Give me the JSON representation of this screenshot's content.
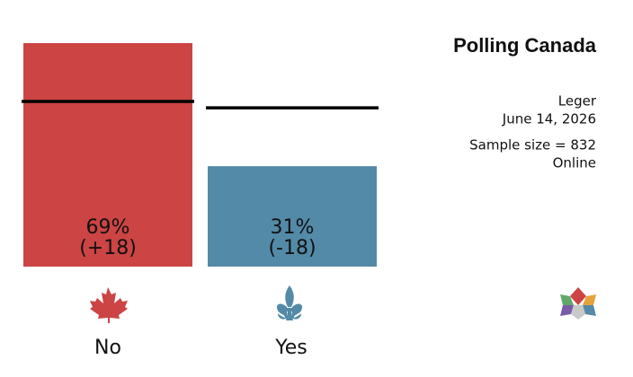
{
  "chart_data": {
    "type": "bar",
    "title": "Polling Canada",
    "pollster": "Leger",
    "date": "June 14, 2026",
    "sample": "Sample size = 832",
    "method": "Online",
    "categories": [
      "No",
      "Yes"
    ],
    "values": [
      69,
      31
    ],
    "value_labels": [
      "69%",
      "31%"
    ],
    "changes": [
      18,
      -18
    ],
    "change_labels": [
      "(+18)",
      "(-18)"
    ],
    "previous": [
      51,
      49
    ],
    "colors": [
      "#cc4444",
      "#538aa8"
    ],
    "ylim": [
      0,
      69
    ]
  }
}
